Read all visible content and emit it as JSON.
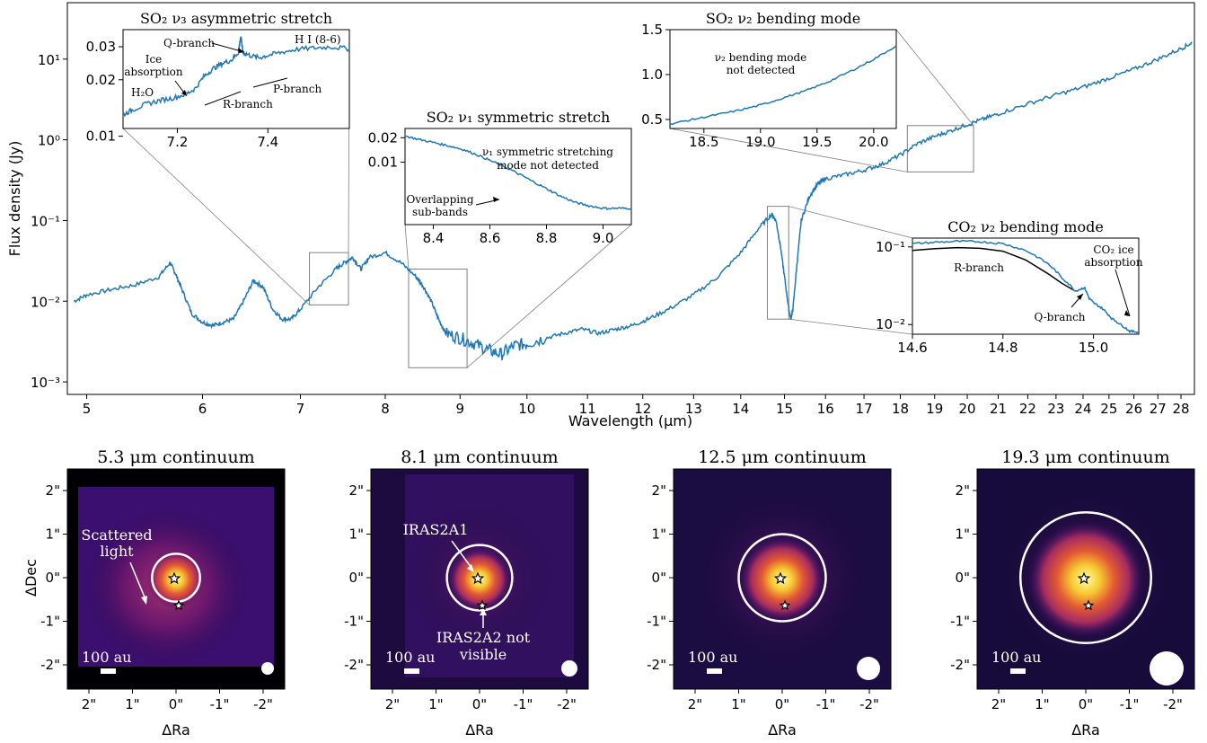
{
  "chart_data": [
    {
      "type": "line",
      "title": "",
      "xlabel": "Wavelength (μm)",
      "ylabel": "Flux density (Jy)",
      "xscale": "log",
      "yscale": "log",
      "xlim": [
        4.85,
        28.6
      ],
      "ylim": [
        0.0007,
        50
      ],
      "xticks": [
        5,
        6,
        7,
        8,
        9,
        10,
        11,
        12,
        13,
        14,
        15,
        16,
        17,
        18,
        19,
        20,
        21,
        22,
        23,
        24,
        25,
        26,
        27,
        28
      ],
      "xtick_labels": [
        "5",
        "6",
        "7",
        "8",
        "9",
        "10",
        "11",
        "12",
        "13",
        "14",
        "15",
        "16",
        "17",
        "18",
        "19",
        "20",
        "21",
        "22",
        "23",
        "24",
        "25",
        "26",
        "27",
        "28"
      ],
      "yticks": [
        0.001,
        0.01,
        0.1,
        1,
        10
      ],
      "ytick_labels": [
        "10⁻³",
        "10⁻²",
        "10⁻¹",
        "10⁰",
        "10¹"
      ],
      "color": "#1f77b4",
      "series": [
        {
          "x": [
            4.9,
            5.0,
            5.2,
            5.4,
            5.6,
            5.7,
            5.75,
            5.8,
            5.9,
            6.0,
            6.1,
            6.2,
            6.3,
            6.4,
            6.5,
            6.6,
            6.7,
            6.8,
            6.9,
            7.0,
            7.2,
            7.4,
            7.5,
            7.6,
            7.7,
            7.8,
            8.0,
            8.2,
            8.4,
            8.5,
            8.6,
            8.7,
            8.8,
            9.0,
            9.2,
            9.4,
            9.6,
            9.8,
            10.0,
            10.3,
            10.6,
            10.9,
            11.2,
            11.5,
            11.8,
            12.1,
            12.5,
            13.0,
            13.5,
            14.0,
            14.4,
            14.7,
            14.8,
            14.9,
            15.0,
            15.1,
            15.15,
            15.2,
            15.3,
            15.4,
            15.6,
            15.8,
            16.0,
            16.5,
            17.0,
            17.5,
            18.0,
            18.5,
            19.0,
            19.5,
            20.0,
            20.5,
            21.0,
            22.0,
            23.0,
            24.0,
            25.0,
            26.0,
            27.0,
            28.0,
            28.5
          ],
          "y": [
            0.01,
            0.012,
            0.014,
            0.016,
            0.02,
            0.03,
            0.022,
            0.015,
            0.007,
            0.0055,
            0.005,
            0.0055,
            0.006,
            0.01,
            0.018,
            0.015,
            0.008,
            0.006,
            0.006,
            0.008,
            0.015,
            0.025,
            0.03,
            0.035,
            0.025,
            0.035,
            0.04,
            0.03,
            0.02,
            0.015,
            0.01,
            0.006,
            0.004,
            0.0035,
            0.003,
            0.0025,
            0.0022,
            0.0028,
            0.003,
            0.0035,
            0.004,
            0.0045,
            0.004,
            0.0045,
            0.005,
            0.006,
            0.008,
            0.012,
            0.02,
            0.04,
            0.08,
            0.12,
            0.1,
            0.05,
            0.02,
            0.008,
            0.006,
            0.008,
            0.03,
            0.1,
            0.2,
            0.28,
            0.33,
            0.37,
            0.42,
            0.5,
            0.65,
            0.9,
            1.1,
            1.3,
            1.55,
            1.8,
            2.1,
            2.8,
            3.6,
            4.5,
            5.8,
            7.5,
            10.0,
            13.5,
            16.0
          ]
        }
      ],
      "zoom_boxes": [
        {
          "x": [
            7.1,
            7.55
          ],
          "y": [
            0.009,
            0.04
          ]
        },
        {
          "x": [
            8.3,
            9.1
          ],
          "y": [
            0.0015,
            0.025
          ]
        },
        {
          "x": [
            14.6,
            15.1
          ],
          "y": [
            0.006,
            0.15
          ]
        },
        {
          "x": [
            18.2,
            20.2
          ],
          "y": [
            0.4,
            1.5
          ]
        }
      ],
      "insets": [
        {
          "title": "SO₂ ν₃ asymmetric stretch",
          "xlim": [
            7.08,
            7.58
          ],
          "ylim": [
            0.011,
            0.037
          ],
          "yscale": "log",
          "xticks": [
            7.2,
            7.4
          ],
          "xtick_labels": [
            "7.2",
            "7.4"
          ],
          "yticks": [
            0.01,
            0.02,
            0.03
          ],
          "ytick_labels": [
            "0.01",
            "0.02",
            "0.03"
          ],
          "x": [
            7.08,
            7.1,
            7.13,
            7.16,
            7.19,
            7.22,
            7.24,
            7.26,
            7.28,
            7.3,
            7.32,
            7.335,
            7.34,
            7.345,
            7.36,
            7.38,
            7.4,
            7.43,
            7.46,
            7.5,
            7.54,
            7.58
          ],
          "y": [
            0.013,
            0.0138,
            0.0148,
            0.0155,
            0.016,
            0.0168,
            0.018,
            0.021,
            0.023,
            0.0245,
            0.0255,
            0.028,
            0.034,
            0.028,
            0.027,
            0.0262,
            0.027,
            0.028,
            0.029,
            0.0295,
            0.03,
            0.0292
          ],
          "annotations": {
            "q_branch": "Q-branch",
            "hi": "H I (8-6)",
            "ice_1": "Ice",
            "ice_2": "absorption",
            "h2o": "H₂O",
            "p_branch": "P-branch",
            "r_branch": "R-branch"
          }
        },
        {
          "title": "SO₂ ν₁ symmetric stretch",
          "xlim": [
            8.3,
            9.1
          ],
          "ylim": [
            0.0017,
            0.026
          ],
          "yscale": "log",
          "xticks": [
            8.4,
            8.6,
            8.8,
            9.0
          ],
          "xtick_labels": [
            "8.4",
            "8.6",
            "8.8",
            "9.0"
          ],
          "yticks": [
            0.01,
            0.02
          ],
          "ytick_labels": [
            "0.01",
            "0.02"
          ],
          "x": [
            8.3,
            8.35,
            8.4,
            8.45,
            8.5,
            8.55,
            8.6,
            8.65,
            8.7,
            8.75,
            8.8,
            8.85,
            8.9,
            8.95,
            9.0,
            9.05,
            9.1
          ],
          "y": [
            0.021,
            0.019,
            0.0175,
            0.016,
            0.0145,
            0.0125,
            0.0105,
            0.0088,
            0.0072,
            0.0058,
            0.0047,
            0.0038,
            0.0032,
            0.0029,
            0.0027,
            0.0027,
            0.0027
          ],
          "annotations": {
            "not_detected_1": "ν₁ symmetric stretching",
            "not_detected_2": "mode not detected",
            "overlap_1": "Overlapping",
            "overlap_2": "sub-bands"
          }
        },
        {
          "title": "SO₂ ν₂ bending mode",
          "xlim": [
            18.2,
            20.2
          ],
          "ylim": [
            0.4,
            1.5
          ],
          "xticks": [
            18.5,
            19.0,
            19.5,
            20.0
          ],
          "xtick_labels": [
            "18.5",
            "19.0",
            "19.5",
            "20.0"
          ],
          "yticks": [
            0.5,
            1.0,
            1.5
          ],
          "ytick_labels": [
            "0.5",
            "1.0",
            "1.5"
          ],
          "x": [
            18.2,
            18.4,
            18.6,
            18.8,
            19.0,
            19.2,
            19.4,
            19.6,
            19.8,
            20.0,
            20.2
          ],
          "y": [
            0.45,
            0.5,
            0.55,
            0.6,
            0.66,
            0.74,
            0.82,
            0.92,
            1.04,
            1.17,
            1.32
          ],
          "annotations": {
            "nd_1": "ν₂ bending mode",
            "nd_2": "not detected"
          }
        },
        {
          "title": "CO₂ ν₂ bending mode",
          "xlim": [
            14.6,
            15.1
          ],
          "ylim": [
            0.0075,
            0.13
          ],
          "yscale": "log",
          "xticks": [
            14.6,
            14.8,
            15.0
          ],
          "xtick_labels": [
            "14.6",
            "14.8",
            "15.0"
          ],
          "yticks": [
            0.01,
            0.1
          ],
          "ytick_labels": [
            "10⁻²",
            "10⁻¹"
          ],
          "x": [
            14.6,
            14.65,
            14.7,
            14.75,
            14.8,
            14.85,
            14.9,
            14.93,
            14.96,
            14.98,
            14.99,
            15.0,
            15.02,
            15.04,
            15.06,
            15.08,
            15.1
          ],
          "y": [
            0.11,
            0.115,
            0.118,
            0.117,
            0.11,
            0.09,
            0.06,
            0.04,
            0.027,
            0.03,
            0.022,
            0.019,
            0.016,
            0.012,
            0.01,
            0.0082,
            0.008
          ],
          "model_x": [
            14.6,
            14.65,
            14.7,
            14.75,
            14.8,
            14.85,
            14.9,
            14.93,
            14.96
          ],
          "model_y": [
            0.09,
            0.095,
            0.098,
            0.096,
            0.088,
            0.068,
            0.045,
            0.034,
            0.027
          ],
          "annotations": {
            "r_branch": "R-branch",
            "q_branch": "Q-branch",
            "co2_ice_1": "CO₂ ice",
            "co2_ice_2": "absorption"
          }
        }
      ]
    },
    {
      "type": "heatmap",
      "title": "5.3 μm continuum",
      "xlabel": "ΔRa",
      "ylabel": "ΔDec",
      "xticks": [
        "2\"",
        "1\"",
        "0\"",
        "-1\"",
        "-2\""
      ],
      "yticks": [
        "2\"",
        "1\"",
        "0\"",
        "-1\"",
        "-2\""
      ],
      "scalebar": "100 au",
      "aperture_radius_arcsec": 0.55,
      "annotations": [
        "Scattered",
        "light"
      ]
    },
    {
      "type": "heatmap",
      "title": "8.1 μm continuum",
      "xlabel": "ΔRa",
      "xticks": [
        "2\"",
        "1\"",
        "0\"",
        "-1\"",
        "-2\""
      ],
      "yticks": [
        "2\"",
        "1\"",
        "0\"",
        "-1\"",
        "-2\""
      ],
      "scalebar": "100 au",
      "aperture_radius_arcsec": 0.75,
      "annotations": [
        "IRAS2A1",
        "IRAS2A2 not",
        "visible"
      ]
    },
    {
      "type": "heatmap",
      "title": "12.5 μm continuum",
      "xlabel": "ΔRa",
      "xticks": [
        "2\"",
        "1\"",
        "0\"",
        "-1\"",
        "-2\""
      ],
      "yticks": [
        "2\"",
        "1\"",
        "0\"",
        "-1\"",
        "-2\""
      ],
      "scalebar": "100 au",
      "aperture_radius_arcsec": 1.0
    },
    {
      "type": "heatmap",
      "title": "19.3 μm continuum",
      "xlabel": "ΔRa",
      "xticks": [
        "2\"",
        "1\"",
        "0\"",
        "-1\"",
        "-2\""
      ],
      "yticks": [
        "2\"",
        "1\"",
        "0\"",
        "-1\"",
        "-2\""
      ],
      "scalebar": "100 au",
      "aperture_radius_arcsec": 1.5
    }
  ]
}
